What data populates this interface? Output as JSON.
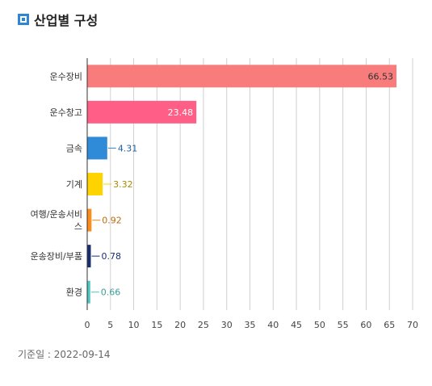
{
  "header": {
    "title": "산업별 구성"
  },
  "footer": {
    "date_label": "기준일 : 2022-09-14"
  },
  "chart_data": {
    "type": "bar",
    "orientation": "horizontal",
    "categories": [
      "운수장비",
      "운수창고",
      "금속",
      "기계",
      "여행/운송서비스",
      "운송장비/부품",
      "환경"
    ],
    "category_lines": [
      [
        "운수장비"
      ],
      [
        "운수창고"
      ],
      [
        "금속"
      ],
      [
        "기계"
      ],
      [
        "여행/운송서비",
        "스"
      ],
      [
        "운송장비/부품"
      ],
      [
        "환경"
      ]
    ],
    "values": [
      66.53,
      23.48,
      4.31,
      3.32,
      0.92,
      0.78,
      0.66
    ],
    "value_labels": [
      "66.53",
      "23.48",
      "4.31",
      "3.32",
      "0.92",
      "0.78",
      "0.66"
    ],
    "colors": [
      "#f87c7c",
      "#ff5f86",
      "#2f8ad8",
      "#ffd300",
      "#ff8c1a",
      "#1a2e6e",
      "#4fc7c0"
    ],
    "label_colors": [
      "#333333",
      "#ffffff",
      "#1f5f99",
      "#a88a00",
      "#c06a10",
      "#1a2e6e",
      "#3a9e99"
    ],
    "xlim": [
      0,
      70
    ],
    "xticks": [
      0,
      5,
      10,
      15,
      20,
      25,
      30,
      35,
      40,
      45,
      50,
      55,
      60,
      65,
      70
    ],
    "grid": true
  }
}
